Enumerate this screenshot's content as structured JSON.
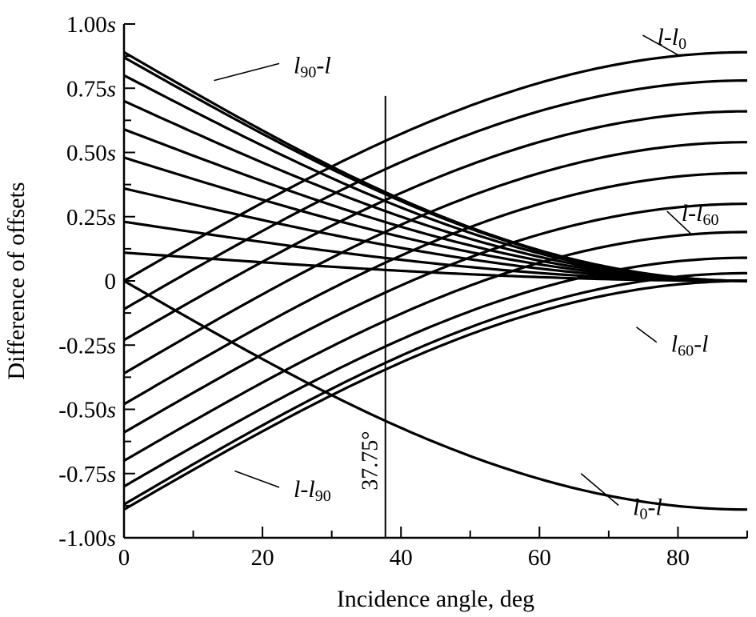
{
  "chart_data": {
    "type": "line",
    "xlabel": "Incidence angle, deg",
    "ylabel": "Difference of offsets",
    "xlim": [
      0,
      90
    ],
    "ylim": [
      -1.0,
      1.0
    ],
    "x_ticks": [
      {
        "value": 0,
        "label": "0"
      },
      {
        "value": 20,
        "label": "20"
      },
      {
        "value": 40,
        "label": "40"
      },
      {
        "value": 60,
        "label": "60"
      },
      {
        "value": 80,
        "label": "80"
      }
    ],
    "x_minor_step": 10,
    "y_ticks": [
      {
        "value": 1.0,
        "label": "1.00",
        "suffix": "s"
      },
      {
        "value": 0.75,
        "label": "0.75",
        "suffix": "s"
      },
      {
        "value": 0.5,
        "label": "0.50",
        "suffix": "s"
      },
      {
        "value": 0.25,
        "label": "0.25",
        "suffix": "s"
      },
      {
        "value": 0,
        "label": "0",
        "suffix": ""
      },
      {
        "value": -0.25,
        "label": "-0.25",
        "suffix": "s"
      },
      {
        "value": -0.5,
        "label": "-0.50",
        "suffix": "s"
      },
      {
        "value": -0.75,
        "label": "-0.75",
        "suffix": "s"
      },
      {
        "value": -1.0,
        "label": "-1.00",
        "suffix": "s"
      }
    ],
    "y_minor_step": 0.125,
    "grid": false,
    "vline": {
      "x": 37.75,
      "y_top": 0.72,
      "label": "37.75°"
    },
    "series": [
      {
        "values": [
          0.89,
          0.0
        ]
      },
      {
        "values": [
          0.87,
          0.0
        ]
      },
      {
        "values": [
          0.8,
          0.0
        ]
      },
      {
        "values": [
          0.7,
          0.0
        ]
      },
      {
        "values": [
          0.59,
          0.0
        ]
      },
      {
        "values": [
          0.48,
          0.0
        ]
      },
      {
        "values": [
          0.36,
          0.0
        ]
      },
      {
        "values": [
          0.23,
          0.0
        ]
      },
      {
        "values": [
          0.11,
          0.0
        ]
      },
      {
        "values": [
          0.0,
          -0.89
        ]
      },
      {
        "values": [
          0.0,
          0.89
        ]
      },
      {
        "values": [
          -0.11,
          0.78
        ]
      },
      {
        "values": [
          -0.23,
          0.66
        ]
      },
      {
        "values": [
          -0.36,
          0.54
        ]
      },
      {
        "values": [
          -0.48,
          0.42
        ]
      },
      {
        "values": [
          -0.59,
          0.3
        ]
      },
      {
        "values": [
          -0.7,
          0.19
        ]
      },
      {
        "values": [
          -0.8,
          0.09
        ]
      },
      {
        "values": [
          -0.87,
          0.03
        ]
      },
      {
        "values": [
          -0.89,
          0.0
        ]
      }
    ],
    "series_x_endpoints": [
      0,
      90
    ],
    "annotations": [
      {
        "main": "l",
        "sub": "90",
        "rest": "-l",
        "x": 24.5,
        "y": 0.84,
        "target_x": 13,
        "target_y": 0.78
      },
      {
        "main": "l-l",
        "sub": "0",
        "rest": "",
        "x": 77.0,
        "y": 0.95,
        "target_x": 80,
        "target_y": 0.88
      },
      {
        "main": "l-l",
        "sub": "60",
        "rest": "",
        "x": 80.5,
        "y": 0.265,
        "target_x": 82,
        "target_y": 0.18
      },
      {
        "main": "l",
        "sub": "60",
        "rest": "-l",
        "x": 79.0,
        "y": -0.245,
        "target_x": 74,
        "target_y": -0.18
      },
      {
        "main": "l-l",
        "sub": "90",
        "rest": "",
        "x": 24.5,
        "y": -0.81,
        "target_x": 16,
        "target_y": -0.74
      },
      {
        "main": "l",
        "sub": "0",
        "rest": "-l",
        "x": 73.5,
        "y": -0.88,
        "target_x": 66,
        "target_y": -0.75
      }
    ]
  }
}
